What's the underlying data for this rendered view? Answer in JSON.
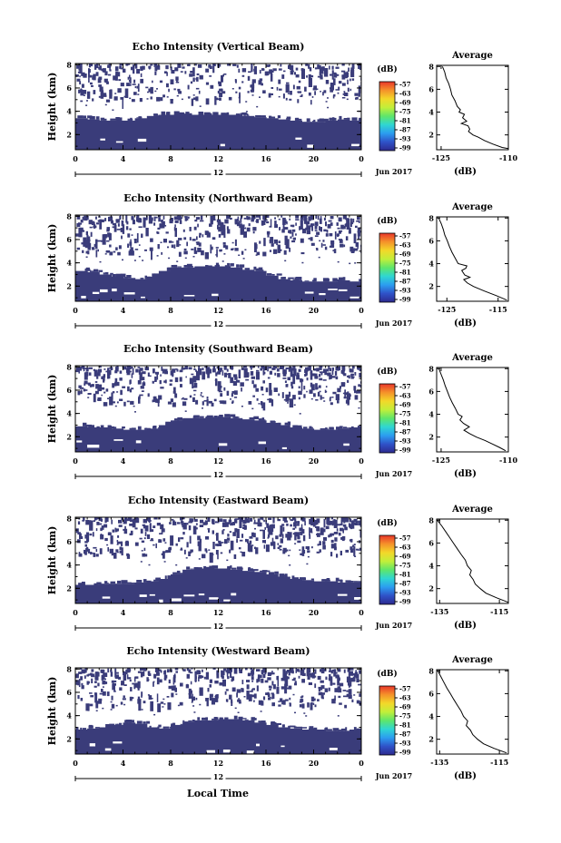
{
  "figure": {
    "xlabel": "Local Time",
    "date_label": "Jun 2017",
    "colorbar_unit": "(dB)",
    "avg_title": "Average",
    "avg_xlabel": "(dB)",
    "ylabel": "Height (km)"
  },
  "chart_data": [
    {
      "type": "heatmap",
      "title": "Echo Intensity (Vertical Beam)",
      "ylabel": "Height (km)",
      "x_ticks": [
        "0",
        "4",
        "8",
        "12",
        "16",
        "20",
        "0"
      ],
      "x_sub_label": "12",
      "y_ticks": [
        "2",
        "4",
        "6",
        "8"
      ],
      "xlim": [
        0,
        24
      ],
      "ylim": [
        0.7,
        8.1
      ],
      "colorbar": {
        "unit": "(dB)",
        "ticks": [
          "-57",
          "-63",
          "-69",
          "-75",
          "-81",
          "-87",
          "-93",
          "-99"
        ]
      },
      "lower_layer": [
        3.4,
        3.3,
        3.2,
        3.2,
        3.2,
        3.4,
        3.6,
        3.7,
        3.7,
        3.7,
        3.7,
        3.7,
        3.7,
        3.7,
        3.6,
        3.5,
        3.4,
        3.3,
        3.2,
        3.1,
        3.1,
        3.2,
        3.3,
        3.2
      ],
      "upper_clutter": [
        0.5,
        0.5,
        0.5,
        0.4,
        0.4,
        0.3,
        0.3,
        0.3,
        0.3,
        0.3,
        0.3,
        0.3,
        0.3,
        0.3,
        0.3,
        0.3,
        0.3,
        0.35,
        0.4,
        0.4,
        0.45,
        0.45,
        0.45,
        0.45
      ],
      "average": {
        "title": "Average",
        "xlabel": "(dB)",
        "xticks": [
          "-125",
          "-110"
        ],
        "xlim": [
          -126,
          -110
        ],
        "yticks": [
          "2",
          "4",
          "6",
          "8"
        ],
        "ylim": [
          0.7,
          8.1
        ],
        "height": [
          8.0,
          7.5,
          7.0,
          6.5,
          6.0,
          5.5,
          5.0,
          4.5,
          4.2,
          4.0,
          3.8,
          3.5,
          3.2,
          3.0,
          2.8,
          2.5,
          2.3,
          2.0,
          1.8,
          1.5,
          1.2,
          0.9,
          0.8
        ],
        "db": [
          -124.7,
          -124.2,
          -123.9,
          -123.3,
          -122.9,
          -122.6,
          -121.9,
          -121.4,
          -120.7,
          -121.0,
          -119.8,
          -120.2,
          -119.3,
          -120.5,
          -119.0,
          -118.6,
          -118.9,
          -117.9,
          -116.7,
          -115.3,
          -113.5,
          -111.4,
          -110.0
        ]
      }
    },
    {
      "type": "heatmap",
      "title": "Echo Intensity (Northward Beam)",
      "ylabel": "Height (km)",
      "x_ticks": [
        "0",
        "4",
        "8",
        "12",
        "16",
        "20",
        "0"
      ],
      "x_sub_label": "12",
      "y_ticks": [
        "2",
        "4",
        "6",
        "8"
      ],
      "xlim": [
        0,
        24
      ],
      "ylim": [
        0.7,
        8.1
      ],
      "colorbar": {
        "unit": "(dB)",
        "ticks": [
          "-57",
          "-63",
          "-69",
          "-75",
          "-81",
          "-87",
          "-93",
          "-99"
        ]
      },
      "lower_layer": [
        3.3,
        3.2,
        3.0,
        2.8,
        2.7,
        2.6,
        2.8,
        3.3,
        3.6,
        3.6,
        3.7,
        3.7,
        3.7,
        3.6,
        3.4,
        3.3,
        2.9,
        2.6,
        2.5,
        2.4,
        2.4,
        2.4,
        2.5,
        2.4
      ],
      "upper_clutter": [
        0.55,
        0.55,
        0.5,
        0.45,
        0.45,
        0.4,
        0.4,
        0.35,
        0.35,
        0.4,
        0.4,
        0.4,
        0.35,
        0.35,
        0.4,
        0.4,
        0.45,
        0.45,
        0.45,
        0.5,
        0.5,
        0.45,
        0.5,
        0.5
      ],
      "average": {
        "title": "Average",
        "xlabel": "(dB)",
        "xticks": [
          "-125",
          "-115"
        ],
        "xlim": [
          -127,
          -113
        ],
        "yticks": [
          "2",
          "4",
          "6",
          "8"
        ],
        "ylim": [
          0.7,
          8.1
        ],
        "height": [
          8.0,
          7.5,
          7.0,
          6.5,
          6.0,
          5.5,
          5.0,
          4.5,
          4.0,
          3.8,
          3.6,
          3.4,
          3.0,
          2.8,
          2.6,
          2.3,
          2.0,
          1.6,
          1.2,
          0.8
        ],
        "db": [
          -126.6,
          -126.1,
          -125.7,
          -125.4,
          -124.9,
          -124.5,
          -124.0,
          -123.4,
          -122.8,
          -121.1,
          -121.3,
          -122.1,
          -121.5,
          -120.5,
          -121.7,
          -121.0,
          -119.8,
          -117.7,
          -115.4,
          -113.3
        ]
      }
    },
    {
      "type": "heatmap",
      "title": "Echo Intensity (Southward Beam)",
      "ylabel": "Height (km)",
      "x_ticks": [
        "0",
        "4",
        "8",
        "12",
        "16",
        "20",
        "0"
      ],
      "x_sub_label": "12",
      "y_ticks": [
        "2",
        "4",
        "6",
        "8"
      ],
      "xlim": [
        0,
        24
      ],
      "ylim": [
        0.7,
        8.1
      ],
      "colorbar": {
        "unit": "(dB)",
        "ticks": [
          "-57",
          "-63",
          "-69",
          "-75",
          "-81",
          "-87",
          "-93",
          "-99"
        ]
      },
      "lower_layer": [
        2.9,
        2.8,
        2.8,
        2.7,
        2.6,
        2.6,
        2.7,
        3.0,
        3.4,
        3.6,
        3.6,
        3.7,
        3.7,
        3.6,
        3.5,
        3.4,
        3.2,
        3.0,
        2.8,
        2.7,
        2.6,
        2.6,
        2.7,
        2.8
      ],
      "upper_clutter": [
        0.55,
        0.55,
        0.5,
        0.45,
        0.45,
        0.4,
        0.4,
        0.35,
        0.35,
        0.4,
        0.4,
        0.45,
        0.4,
        0.4,
        0.4,
        0.45,
        0.45,
        0.5,
        0.5,
        0.5,
        0.5,
        0.5,
        0.55,
        0.55
      ],
      "average": {
        "title": "Average",
        "xlabel": "(dB)",
        "xticks": [
          "-125",
          "-110"
        ],
        "xlim": [
          -126,
          -110
        ],
        "yticks": [
          "2",
          "4",
          "6",
          "8"
        ],
        "ylim": [
          0.7,
          8.1
        ],
        "height": [
          8.0,
          7.5,
          7.0,
          6.5,
          6.0,
          5.5,
          5.0,
          4.5,
          4.0,
          3.8,
          3.5,
          3.2,
          2.9,
          2.6,
          2.3,
          2.0,
          1.7,
          1.4,
          1.1,
          0.8
        ],
        "db": [
          -125.5,
          -125.0,
          -124.5,
          -124.1,
          -123.6,
          -123.1,
          -122.5,
          -121.8,
          -121.2,
          -120.3,
          -120.8,
          -120.0,
          -118.7,
          -119.9,
          -118.6,
          -117.1,
          -115.2,
          -113.6,
          -112.0,
          -110.6
        ]
      }
    },
    {
      "type": "heatmap",
      "title": "Echo Intensity (Eastward Beam)",
      "ylabel": "Height (km)",
      "x_ticks": [
        "0",
        "4",
        "8",
        "12",
        "16",
        "20",
        "0"
      ],
      "x_sub_label": "12",
      "y_ticks": [
        "2",
        "4",
        "6",
        "8"
      ],
      "xlim": [
        0,
        24
      ],
      "ylim": [
        0.7,
        8.1
      ],
      "colorbar": {
        "unit": "(dB)",
        "ticks": [
          "-57",
          "-63",
          "-69",
          "-75",
          "-81",
          "-87",
          "-93",
          "-99"
        ]
      },
      "lower_layer": [
        2.3,
        2.3,
        2.4,
        2.4,
        2.4,
        2.5,
        2.6,
        2.8,
        3.2,
        3.6,
        3.7,
        3.7,
        3.7,
        3.6,
        3.5,
        3.4,
        3.2,
        3.0,
        2.8,
        2.7,
        2.6,
        2.6,
        2.5,
        2.5
      ],
      "upper_clutter": [
        0.5,
        0.5,
        0.45,
        0.45,
        0.45,
        0.4,
        0.4,
        0.35,
        0.35,
        0.4,
        0.4,
        0.45,
        0.45,
        0.45,
        0.5,
        0.5,
        0.5,
        0.55,
        0.55,
        0.5,
        0.5,
        0.55,
        0.55,
        0.55
      ],
      "average": {
        "title": "Average",
        "xlabel": "(dB)",
        "xticks": [
          "-135",
          "-115"
        ],
        "xlim": [
          -136,
          -112
        ],
        "yticks": [
          "2",
          "4",
          "6",
          "8"
        ],
        "ylim": [
          0.7,
          8.1
        ],
        "height": [
          8.0,
          7.5,
          7.0,
          6.5,
          6.0,
          5.5,
          5.0,
          4.5,
          4.0,
          3.6,
          3.2,
          2.8,
          2.4,
          2.0,
          1.6,
          1.2,
          0.8
        ],
        "db": [
          -135.8,
          -134.3,
          -133.0,
          -131.7,
          -130.4,
          -129.1,
          -127.8,
          -126.4,
          -125.7,
          -124.4,
          -124.9,
          -123.8,
          -123.1,
          -121.4,
          -119.5,
          -116.0,
          -112.1
        ]
      }
    },
    {
      "type": "heatmap",
      "title": "Echo Intensity (Westward Beam)",
      "ylabel": "Height (km)",
      "x_ticks": [
        "0",
        "4",
        "8",
        "12",
        "16",
        "20",
        "0"
      ],
      "x_sub_label": "12",
      "y_ticks": [
        "2",
        "4",
        "6",
        "8"
      ],
      "xlim": [
        0,
        24
      ],
      "ylim": [
        0.7,
        8.1
      ],
      "colorbar": {
        "unit": "(dB)",
        "ticks": [
          "-57",
          "-63",
          "-69",
          "-75",
          "-81",
          "-87",
          "-93",
          "-99"
        ]
      },
      "lower_layer": [
        2.8,
        2.9,
        3.0,
        3.2,
        3.4,
        3.3,
        3.0,
        2.9,
        3.2,
        3.5,
        3.6,
        3.6,
        3.7,
        3.7,
        3.6,
        3.4,
        3.2,
        3.0,
        2.9,
        2.8,
        2.8,
        2.7,
        2.7,
        2.8
      ],
      "upper_clutter": [
        0.5,
        0.5,
        0.45,
        0.45,
        0.45,
        0.4,
        0.4,
        0.35,
        0.35,
        0.4,
        0.4,
        0.45,
        0.45,
        0.4,
        0.45,
        0.45,
        0.5,
        0.55,
        0.55,
        0.5,
        0.5,
        0.55,
        0.55,
        0.55
      ],
      "average": {
        "title": "Average",
        "xlabel": "(dB)",
        "xticks": [
          "-135",
          "-115"
        ],
        "xlim": [
          -136,
          -112
        ],
        "yticks": [
          "2",
          "4",
          "6",
          "8"
        ],
        "ylim": [
          0.7,
          8.1
        ],
        "height": [
          8.0,
          7.5,
          7.0,
          6.5,
          6.0,
          5.5,
          5.0,
          4.5,
          4.0,
          3.6,
          3.2,
          2.8,
          2.4,
          2.0,
          1.6,
          1.2,
          0.8
        ],
        "db": [
          -135.6,
          -134.6,
          -133.6,
          -132.6,
          -131.4,
          -130.3,
          -129.1,
          -127.9,
          -127.0,
          -125.6,
          -126.1,
          -124.7,
          -123.9,
          -122.3,
          -120.3,
          -116.8,
          -112.6
        ]
      }
    }
  ],
  "colors": {
    "echo": "#3a3c7a",
    "colorbar": [
      "#2d2a8e",
      "#2f52c8",
      "#2c9df0",
      "#2fd6d2",
      "#5fe66a",
      "#c2ef3a",
      "#f3d829",
      "#f5922a",
      "#e8362a"
    ]
  }
}
